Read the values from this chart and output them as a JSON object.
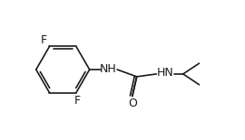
{
  "bg_color": "#ffffff",
  "line_color": "#1a1a1a",
  "label_color": "#000000",
  "nh_color": "#2b6cb0",
  "figsize": [
    2.7,
    1.55
  ],
  "dpi": 100,
  "F1_label": "F",
  "F2_label": "F",
  "NH1_label": "NH",
  "NH2_label": "HN",
  "O_label": "O",
  "font_size": 9.0
}
